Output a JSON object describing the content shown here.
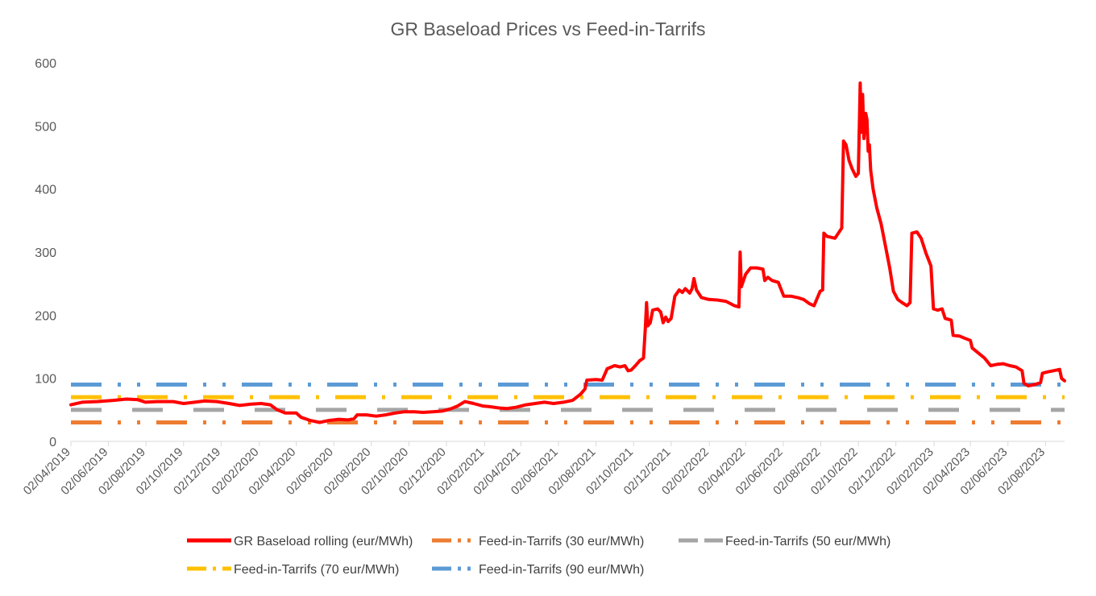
{
  "chart_data": {
    "type": "line",
    "title": "GR Baseload Prices vs Feed-in-Tarrifs",
    "ylim": [
      0,
      600
    ],
    "y_ticks": [
      "0",
      "100",
      "200",
      "300",
      "400",
      "500",
      "600"
    ],
    "x_ticks": [
      "02/04/2019",
      "02/06/2019",
      "02/08/2019",
      "02/10/2019",
      "02/12/2019",
      "02/02/2020",
      "02/04/2020",
      "02/06/2020",
      "02/08/2020",
      "02/10/2020",
      "02/12/2020",
      "02/02/2021",
      "02/04/2021",
      "02/06/2021",
      "02/08/2021",
      "02/10/2021",
      "02/12/2021",
      "02/02/2022",
      "02/04/2022",
      "02/06/2022",
      "02/08/2022",
      "02/10/2022",
      "02/12/2022",
      "02/02/2023",
      "02/04/2023",
      "02/06/2023",
      "02/08/2023"
    ],
    "x_range": [
      "2019-04-02",
      "2023-09-02"
    ],
    "grid": false,
    "legend_position": "bottom",
    "series": [
      {
        "name": "GR Baseload rolling (eur/MWh)",
        "color": "#FF0000",
        "style": "solid",
        "points": [
          [
            "2019-04-02",
            58
          ],
          [
            "2019-04-20",
            62
          ],
          [
            "2019-05-15",
            63
          ],
          [
            "2019-06-10",
            65
          ],
          [
            "2019-07-01",
            67
          ],
          [
            "2019-07-20",
            66
          ],
          [
            "2019-08-01",
            62
          ],
          [
            "2019-08-20",
            63
          ],
          [
            "2019-09-15",
            63
          ],
          [
            "2019-10-02",
            60
          ],
          [
            "2019-10-20",
            62
          ],
          [
            "2019-11-05",
            64
          ],
          [
            "2019-11-25",
            63
          ],
          [
            "2019-12-15",
            60
          ],
          [
            "2020-01-01",
            57
          ],
          [
            "2020-01-20",
            59
          ],
          [
            "2020-02-05",
            60
          ],
          [
            "2020-02-20",
            58
          ],
          [
            "2020-03-02",
            50
          ],
          [
            "2020-03-15",
            45
          ],
          [
            "2020-04-02",
            45
          ],
          [
            "2020-04-10",
            38
          ],
          [
            "2020-04-25",
            33
          ],
          [
            "2020-05-10",
            30
          ],
          [
            "2020-05-25",
            33
          ],
          [
            "2020-06-10",
            35
          ],
          [
            "2020-06-25",
            34
          ],
          [
            "2020-07-05",
            36
          ],
          [
            "2020-07-10",
            42
          ],
          [
            "2020-07-25",
            42
          ],
          [
            "2020-08-10",
            40
          ],
          [
            "2020-08-25",
            42
          ],
          [
            "2020-09-10",
            45
          ],
          [
            "2020-09-25",
            47
          ],
          [
            "2020-10-10",
            47
          ],
          [
            "2020-10-25",
            46
          ],
          [
            "2020-11-10",
            47
          ],
          [
            "2020-11-25",
            48
          ],
          [
            "2020-12-10",
            52
          ],
          [
            "2020-12-20",
            56
          ],
          [
            "2021-01-01",
            63
          ],
          [
            "2021-01-15",
            60
          ],
          [
            "2021-01-30",
            56
          ],
          [
            "2021-02-10",
            55
          ],
          [
            "2021-02-25",
            53
          ],
          [
            "2021-03-10",
            52
          ],
          [
            "2021-03-25",
            54
          ],
          [
            "2021-04-10",
            58
          ],
          [
            "2021-04-25",
            60
          ],
          [
            "2021-05-10",
            62
          ],
          [
            "2021-05-25",
            60
          ],
          [
            "2021-06-10",
            62
          ],
          [
            "2021-06-25",
            65
          ],
          [
            "2021-07-08",
            75
          ],
          [
            "2021-07-15",
            83
          ],
          [
            "2021-07-18",
            97
          ],
          [
            "2021-08-02",
            98
          ],
          [
            "2021-08-12",
            97
          ],
          [
            "2021-08-20",
            115
          ],
          [
            "2021-09-01",
            120
          ],
          [
            "2021-09-10",
            118
          ],
          [
            "2021-09-18",
            120
          ],
          [
            "2021-09-23",
            112
          ],
          [
            "2021-09-28",
            113
          ],
          [
            "2021-10-05",
            120
          ],
          [
            "2021-10-12",
            128
          ],
          [
            "2021-10-18",
            132
          ],
          [
            "2021-10-21",
            180
          ],
          [
            "2021-10-23",
            220
          ],
          [
            "2021-10-25",
            183
          ],
          [
            "2021-10-29",
            188
          ],
          [
            "2021-11-02",
            208
          ],
          [
            "2021-11-10",
            210
          ],
          [
            "2021-11-15",
            205
          ],
          [
            "2021-11-19",
            188
          ],
          [
            "2021-11-23",
            197
          ],
          [
            "2021-11-27",
            190
          ],
          [
            "2021-12-02",
            195
          ],
          [
            "2021-12-08",
            230
          ],
          [
            "2021-12-15",
            240
          ],
          [
            "2021-12-20",
            236
          ],
          [
            "2021-12-25",
            242
          ],
          [
            "2022-01-01",
            235
          ],
          [
            "2022-01-05",
            242
          ],
          [
            "2022-01-08",
            258
          ],
          [
            "2022-01-12",
            240
          ],
          [
            "2022-01-20",
            228
          ],
          [
            "2022-02-01",
            225
          ],
          [
            "2022-02-15",
            224
          ],
          [
            "2022-03-01",
            222
          ],
          [
            "2022-03-15",
            215
          ],
          [
            "2022-03-22",
            213
          ],
          [
            "2022-03-24",
            300
          ],
          [
            "2022-03-26",
            245
          ],
          [
            "2022-04-02",
            265
          ],
          [
            "2022-04-10",
            275
          ],
          [
            "2022-04-20",
            275
          ],
          [
            "2022-04-30",
            273
          ],
          [
            "2022-05-03",
            255
          ],
          [
            "2022-05-08",
            260
          ],
          [
            "2022-05-15",
            255
          ],
          [
            "2022-05-25",
            252
          ],
          [
            "2022-06-03",
            230
          ],
          [
            "2022-06-15",
            230
          ],
          [
            "2022-06-25",
            228
          ],
          [
            "2022-07-05",
            225
          ],
          [
            "2022-07-15",
            218
          ],
          [
            "2022-07-22",
            215
          ],
          [
            "2022-08-01",
            238
          ],
          [
            "2022-08-05",
            240
          ],
          [
            "2022-08-07",
            330
          ],
          [
            "2022-08-12",
            325
          ],
          [
            "2022-08-25",
            322
          ],
          [
            "2022-09-05",
            338
          ],
          [
            "2022-09-08",
            476
          ],
          [
            "2022-09-12",
            470
          ],
          [
            "2022-09-17",
            445
          ],
          [
            "2022-09-22",
            432
          ],
          [
            "2022-09-28",
            420
          ],
          [
            "2022-10-02",
            425
          ],
          [
            "2022-10-05",
            568
          ],
          [
            "2022-10-07",
            490
          ],
          [
            "2022-10-09",
            550
          ],
          [
            "2022-10-11",
            480
          ],
          [
            "2022-10-14",
            520
          ],
          [
            "2022-10-16",
            510
          ],
          [
            "2022-10-18",
            460
          ],
          [
            "2022-10-20",
            470
          ],
          [
            "2022-10-22",
            430
          ],
          [
            "2022-10-26",
            400
          ],
          [
            "2022-11-01",
            370
          ],
          [
            "2022-11-08",
            345
          ],
          [
            "2022-11-15",
            310
          ],
          [
            "2022-11-22",
            275
          ],
          [
            "2022-11-28",
            238
          ],
          [
            "2022-12-05",
            225
          ],
          [
            "2022-12-12",
            220
          ],
          [
            "2022-12-20",
            215
          ],
          [
            "2022-12-25",
            220
          ],
          [
            "2022-12-28",
            330
          ],
          [
            "2023-01-05",
            332
          ],
          [
            "2023-01-12",
            322
          ],
          [
            "2023-01-20",
            298
          ],
          [
            "2023-01-28",
            278
          ],
          [
            "2023-02-01",
            210
          ],
          [
            "2023-02-08",
            208
          ],
          [
            "2023-02-15",
            210
          ],
          [
            "2023-02-20",
            195
          ],
          [
            "2023-03-02",
            192
          ],
          [
            "2023-03-05",
            168
          ],
          [
            "2023-03-15",
            167
          ],
          [
            "2023-03-25",
            163
          ],
          [
            "2023-04-02",
            160
          ],
          [
            "2023-04-05",
            148
          ],
          [
            "2023-04-15",
            140
          ],
          [
            "2023-04-25",
            132
          ],
          [
            "2023-05-05",
            120
          ],
          [
            "2023-05-15",
            122
          ],
          [
            "2023-05-25",
            123
          ],
          [
            "2023-06-05",
            120
          ],
          [
            "2023-06-15",
            118
          ],
          [
            "2023-06-25",
            112
          ],
          [
            "2023-06-28",
            92
          ],
          [
            "2023-07-05",
            88
          ],
          [
            "2023-07-15",
            90
          ],
          [
            "2023-07-25",
            93
          ],
          [
            "2023-07-28",
            108
          ],
          [
            "2023-08-05",
            110
          ],
          [
            "2023-08-15",
            112
          ],
          [
            "2023-08-25",
            114
          ],
          [
            "2023-08-28",
            100
          ],
          [
            "2023-09-02",
            96
          ]
        ]
      },
      {
        "name": "Feed-in-Tarrifs (30 eur/MWh)",
        "color": "#ED7D31",
        "style": "long-dash-dot-dot",
        "constant": 30
      },
      {
        "name": "Feed-in-Tarrifs (50 eur/MWh)",
        "color": "#A5A5A5",
        "style": "long-dash",
        "constant": 50
      },
      {
        "name": "Feed-in-Tarrifs (70 eur/MWh)",
        "color": "#FFC000",
        "style": "long-dash-dot",
        "constant": 70
      },
      {
        "name": "Feed-in-Tarrifs (90 eur/MWh)",
        "color": "#5B9BD5",
        "style": "long-dash-dot-dot",
        "constant": 90
      }
    ]
  }
}
